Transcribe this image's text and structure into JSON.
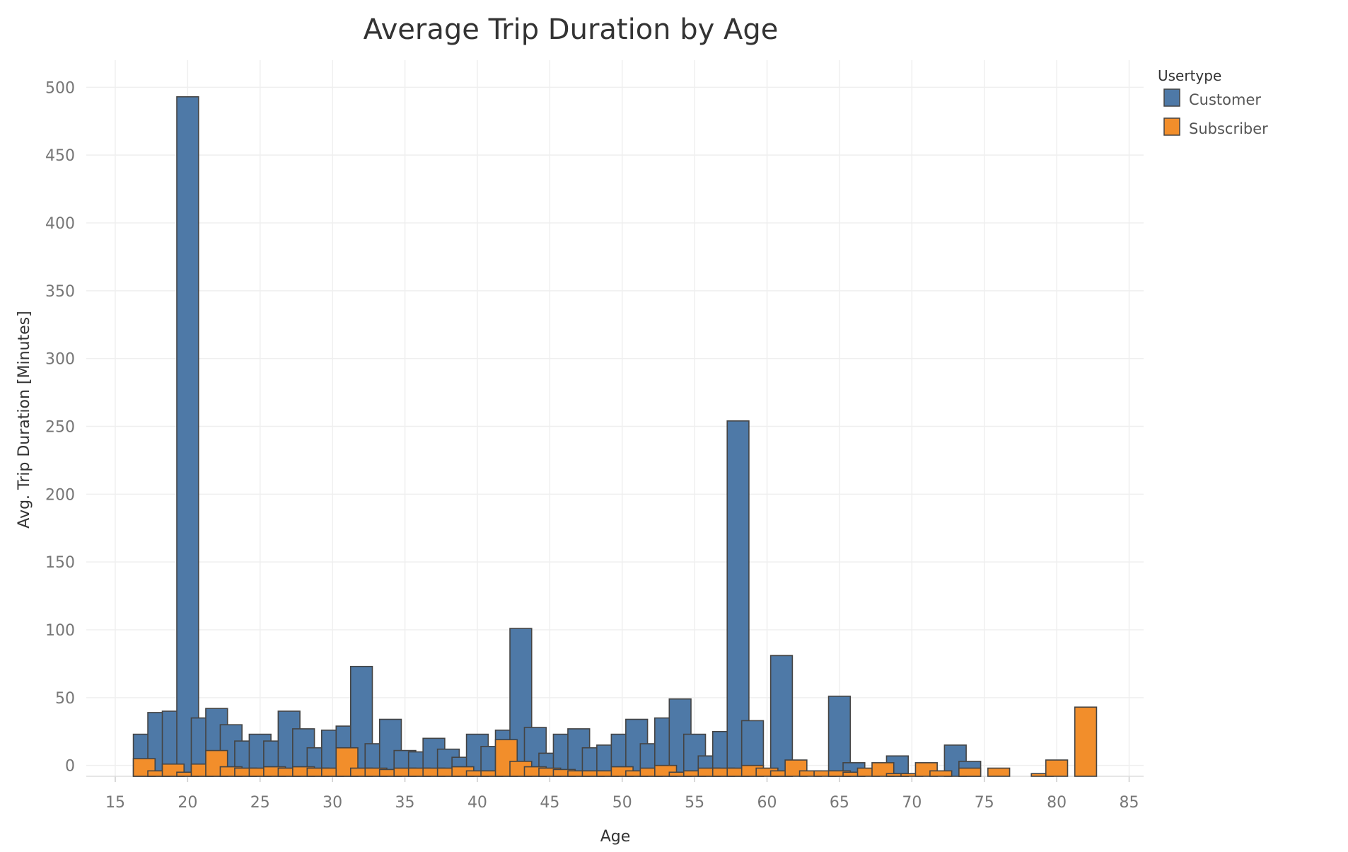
{
  "chart_data": {
    "type": "bar",
    "title": "Average Trip Duration by Age",
    "xlabel": "Age",
    "ylabel": "Avg. Trip Duration [Minutes]",
    "xlim": [
      13,
      86
    ],
    "ylim": [
      -8,
      520
    ],
    "x_ticks": [
      15,
      20,
      25,
      30,
      35,
      40,
      45,
      50,
      55,
      60,
      65,
      70,
      75,
      80,
      85
    ],
    "y_ticks": [
      0,
      50,
      100,
      150,
      200,
      250,
      300,
      350,
      400,
      450,
      500
    ],
    "bar_width": 1.5,
    "grid": true,
    "legend": {
      "title": "Usertype",
      "placement": "top-right"
    },
    "colors": {
      "Customer": "#4e79a7",
      "Subscriber": "#f28e2b"
    },
    "series": [
      {
        "name": "Customer",
        "points": [
          [
            17,
            23
          ],
          [
            18,
            39
          ],
          [
            19,
            40
          ],
          [
            20,
            493
          ],
          [
            21,
            35
          ],
          [
            22,
            42
          ],
          [
            23,
            30
          ],
          [
            24,
            18
          ],
          [
            25,
            23
          ],
          [
            26,
            18
          ],
          [
            27,
            40
          ],
          [
            28,
            27
          ],
          [
            29,
            13
          ],
          [
            30,
            26
          ],
          [
            31,
            29
          ],
          [
            32,
            73
          ],
          [
            33,
            16
          ],
          [
            34,
            34
          ],
          [
            35,
            11
          ],
          [
            36,
            10
          ],
          [
            37,
            20
          ],
          [
            38,
            12
          ],
          [
            39,
            6
          ],
          [
            40,
            23
          ],
          [
            41,
            14
          ],
          [
            42,
            26
          ],
          [
            43,
            101
          ],
          [
            44,
            28
          ],
          [
            45,
            9
          ],
          [
            46,
            23
          ],
          [
            47,
            27
          ],
          [
            48,
            13
          ],
          [
            49,
            15
          ],
          [
            50,
            23
          ],
          [
            51,
            34
          ],
          [
            52,
            16
          ],
          [
            53,
            35
          ],
          [
            54,
            49
          ],
          [
            55,
            23
          ],
          [
            56,
            7
          ],
          [
            57,
            25
          ],
          [
            58,
            254
          ],
          [
            59,
            33
          ],
          [
            61,
            81
          ],
          [
            65,
            51
          ],
          [
            66,
            2
          ],
          [
            69,
            7
          ],
          [
            73,
            15
          ],
          [
            74,
            3
          ]
        ]
      },
      {
        "name": "Subscriber",
        "points": [
          [
            17,
            5
          ],
          [
            18,
            -4
          ],
          [
            19,
            1
          ],
          [
            20,
            -5
          ],
          [
            21,
            1
          ],
          [
            22,
            11
          ],
          [
            23,
            -1
          ],
          [
            24,
            -2
          ],
          [
            25,
            -2
          ],
          [
            26,
            -1
          ],
          [
            27,
            -2
          ],
          [
            28,
            -1
          ],
          [
            29,
            -2
          ],
          [
            30,
            -2
          ],
          [
            31,
            13
          ],
          [
            32,
            -2
          ],
          [
            33,
            -2
          ],
          [
            34,
            -3
          ],
          [
            35,
            -2
          ],
          [
            36,
            -2
          ],
          [
            37,
            -2
          ],
          [
            38,
            -2
          ],
          [
            39,
            -1
          ],
          [
            40,
            -4
          ],
          [
            41,
            -4
          ],
          [
            42,
            19
          ],
          [
            43,
            3
          ],
          [
            44,
            -1
          ],
          [
            45,
            -2
          ],
          [
            46,
            -3
          ],
          [
            47,
            -4
          ],
          [
            48,
            -4
          ],
          [
            49,
            -4
          ],
          [
            50,
            -1
          ],
          [
            51,
            -4
          ],
          [
            52,
            -2
          ],
          [
            53,
            0
          ],
          [
            54,
            -5
          ],
          [
            55,
            -4
          ],
          [
            56,
            -2
          ],
          [
            57,
            -2
          ],
          [
            58,
            -2
          ],
          [
            59,
            0
          ],
          [
            60,
            -2
          ],
          [
            61,
            -4
          ],
          [
            62,
            4
          ],
          [
            63,
            -4
          ],
          [
            64,
            -4
          ],
          [
            65,
            -4
          ],
          [
            66,
            -5
          ],
          [
            67,
            -2
          ],
          [
            68,
            2
          ],
          [
            69,
            -6
          ],
          [
            70,
            -6
          ],
          [
            71,
            2
          ],
          [
            72,
            -4
          ],
          [
            73,
            -8
          ],
          [
            74,
            -2
          ],
          [
            76,
            -2
          ],
          [
            79,
            -6
          ],
          [
            80,
            4
          ],
          [
            82,
            43
          ]
        ]
      }
    ]
  }
}
